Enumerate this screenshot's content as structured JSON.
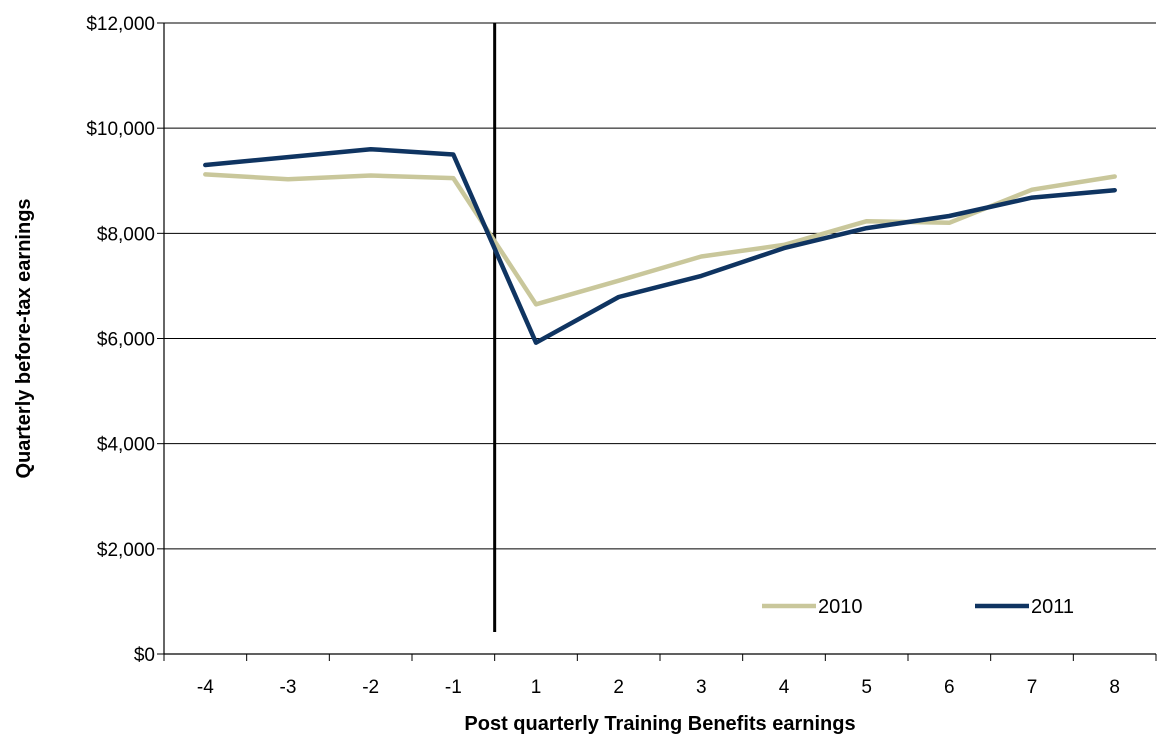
{
  "chart_data": {
    "type": "line",
    "title": "",
    "xlabel": "Post quarterly Training Benefits earnings",
    "ylabel": "Quarterly before-tax earnings",
    "categories": [
      "-4",
      "-3",
      "-2",
      "-1",
      "1",
      "2",
      "3",
      "4",
      "5",
      "6",
      "7",
      "8"
    ],
    "ylim": [
      0,
      12000
    ],
    "yticks": [
      0,
      2000,
      4000,
      6000,
      8000,
      10000,
      12000
    ],
    "ytick_labels": [
      "$0",
      "$2,000",
      "$4,000",
      "$6,000",
      "$8,000",
      "$10,000",
      "$12,000"
    ],
    "grid": true,
    "divider_between": [
      "-1",
      "1"
    ],
    "legend_position": "bottom-right",
    "series": [
      {
        "name": "2010",
        "color": "#c9c79b",
        "values": [
          9120,
          9030,
          9100,
          9050,
          6650,
          7100,
          7560,
          7780,
          8230,
          8200,
          8830,
          9080
        ]
      },
      {
        "name": "2011",
        "color": "#0f3461",
        "values": [
          9300,
          9450,
          9600,
          9500,
          5920,
          6790,
          7190,
          7720,
          8100,
          8330,
          8680,
          8820
        ]
      }
    ]
  }
}
